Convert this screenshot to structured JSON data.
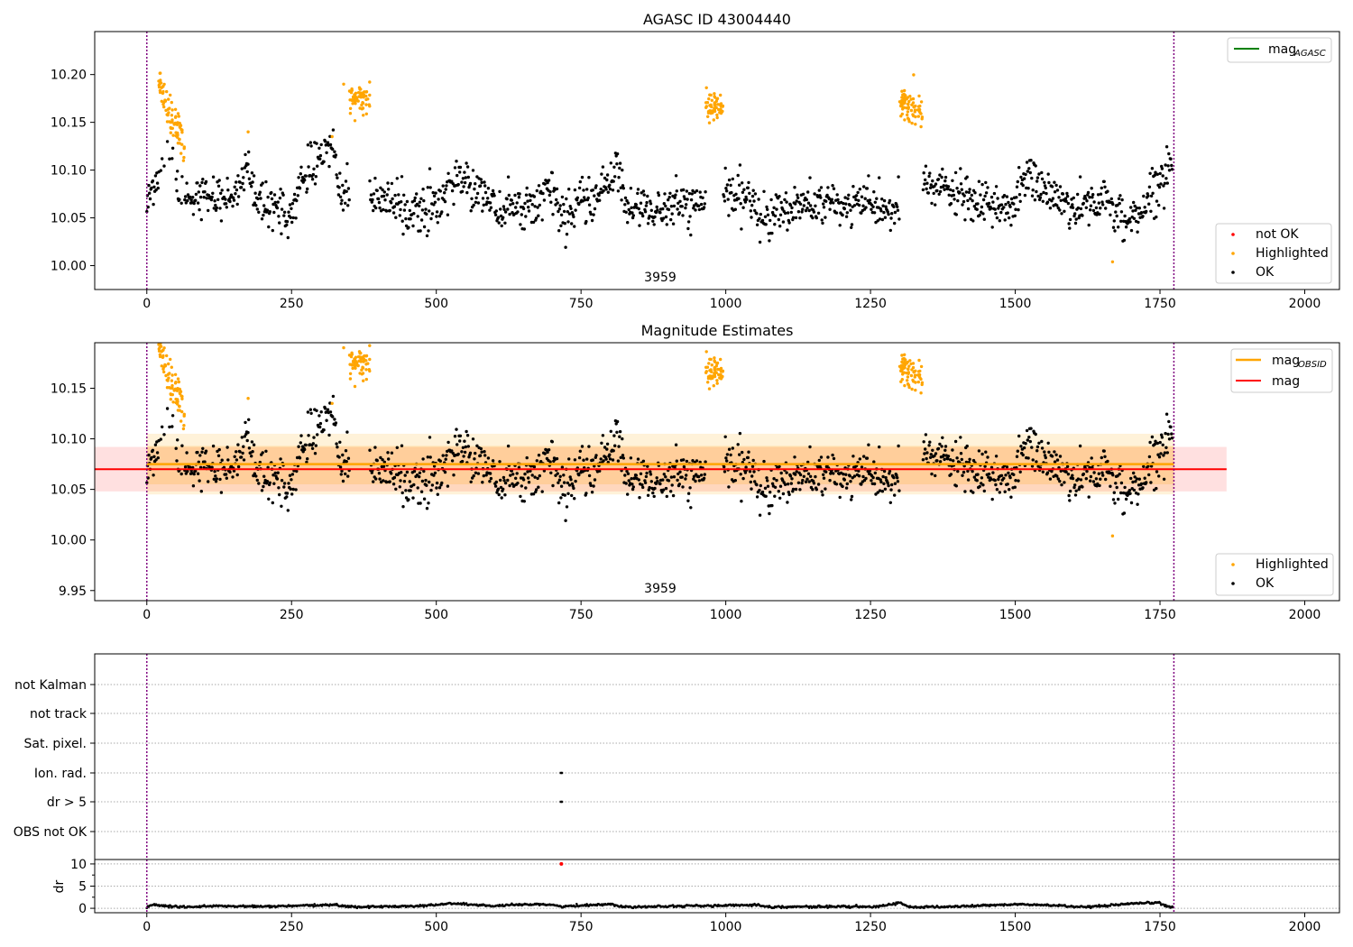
{
  "chart_data": [
    {
      "type": "scatter",
      "title": "AGASC ID 43004440",
      "xlim": [
        -90,
        2060
      ],
      "ylim": [
        9.975,
        10.245
      ],
      "x_ticks": [
        0,
        250,
        500,
        750,
        1000,
        1250,
        1500,
        1750,
        2000
      ],
      "y_ticks": [
        10.0,
        10.05,
        10.1,
        10.15,
        10.2
      ],
      "y_tick_labels": [
        "10.00",
        "10.05",
        "10.10",
        "10.15",
        "10.20"
      ],
      "vlines": [
        0,
        1774
      ],
      "annotation": "3959",
      "legend_top": {
        "position": "upper right",
        "entries": [
          {
            "label": "mag",
            "subscript": "AGASC",
            "color": "#008000"
          }
        ]
      },
      "legend_bottom": {
        "position": "lower right",
        "entries": [
          {
            "label": "not OK",
            "color": "#ff0000"
          },
          {
            "label": "Highlighted",
            "color": "#ffa500"
          },
          {
            "label": "OK",
            "color": "#000000"
          }
        ]
      },
      "series": [
        {
          "name": "OK",
          "color": "#000000",
          "trend": [
            [
              0,
              10.06
            ],
            [
              10,
              10.085
            ],
            [
              35,
              10.115
            ],
            [
              48,
              10.13
            ],
            [
              55,
              10.07
            ],
            [
              90,
              10.075
            ],
            [
              150,
              10.07
            ],
            [
              175,
              10.11
            ],
            [
              185,
              10.065
            ],
            [
              250,
              10.055
            ],
            [
              270,
              10.09
            ],
            [
              300,
              10.12
            ],
            [
              320,
              10.125
            ],
            [
              335,
              10.075
            ],
            [
              360,
              10.075
            ],
            [
              400,
              10.07
            ],
            [
              450,
              10.058
            ],
            [
              500,
              10.06
            ],
            [
              530,
              10.09
            ],
            [
              580,
              10.08
            ],
            [
              610,
              10.055
            ],
            [
              640,
              10.06
            ],
            [
              700,
              10.075
            ],
            [
              720,
              10.055
            ],
            [
              780,
              10.07
            ],
            [
              810,
              10.105
            ],
            [
              830,
              10.06
            ],
            [
              900,
              10.06
            ],
            [
              960,
              10.065
            ],
            [
              990,
              10.075
            ],
            [
              1040,
              10.07
            ],
            [
              1060,
              10.05
            ],
            [
              1100,
              10.06
            ],
            [
              1150,
              10.065
            ],
            [
              1200,
              10.062
            ],
            [
              1250,
              10.065
            ],
            [
              1290,
              10.055
            ],
            [
              1310,
              10.075
            ],
            [
              1350,
              10.085
            ],
            [
              1400,
              10.075
            ],
            [
              1450,
              10.06
            ],
            [
              1500,
              10.065
            ],
            [
              1520,
              10.095
            ],
            [
              1550,
              10.08
            ],
            [
              1600,
              10.06
            ],
            [
              1650,
              10.07
            ],
            [
              1690,
              10.045
            ],
            [
              1720,
              10.06
            ],
            [
              1760,
              10.1
            ],
            [
              1772,
              10.11
            ]
          ]
        },
        {
          "name": "Highlighted",
          "color": "#ffa500",
          "clusters": [
            {
              "from": 20,
              "to": 65,
              "center": 10.165,
              "spread": 0.022
            },
            {
              "from": 350,
              "to": 385,
              "center": 10.175,
              "spread": 0.012
            },
            {
              "from": 965,
              "to": 995,
              "center": 10.167,
              "spread": 0.014
            },
            {
              "from": 1300,
              "to": 1340,
              "center": 10.168,
              "spread": 0.015
            }
          ],
          "outliers": [
            [
              1668,
              10.004
            ],
            [
              175,
              10.14
            ],
            [
              320,
              10.135
            ],
            [
              340,
              10.19
            ]
          ]
        },
        {
          "name": "not OK",
          "color": "#ff0000",
          "points": []
        }
      ]
    },
    {
      "type": "scatter",
      "title": "Magnitude Estimates",
      "xlim": [
        -90,
        2060
      ],
      "ylim": [
        9.94,
        10.195
      ],
      "x_ticks": [
        0,
        250,
        500,
        750,
        1000,
        1250,
        1500,
        1750,
        2000
      ],
      "y_ticks": [
        9.95,
        10.0,
        10.05,
        10.1,
        10.15
      ],
      "y_tick_labels": [
        "9.95",
        "10.00",
        "10.05",
        "10.10",
        "10.15"
      ],
      "vlines": [
        0,
        1774
      ],
      "annotation": "3959",
      "mag_obsid": {
        "value": 10.075,
        "band": [
          10.045,
          10.105
        ],
        "inner_band": [
          10.055,
          10.093
        ],
        "x_range": [
          0,
          1774
        ],
        "color": "#ffa500"
      },
      "mag": {
        "value": 10.07,
        "band": [
          10.048,
          10.092
        ],
        "x_range": [
          -90,
          1865
        ],
        "color": "#ff0000"
      },
      "legend_top": {
        "position": "upper right",
        "entries": [
          {
            "label": "mag",
            "subscript": "OBSID",
            "color": "#ffa500"
          },
          {
            "label": "mag",
            "subscript": "",
            "color": "#ff0000"
          }
        ]
      },
      "legend_bottom": {
        "position": "lower right",
        "entries": [
          {
            "label": "Highlighted",
            "color": "#ffa500"
          },
          {
            "label": "OK",
            "color": "#000000"
          }
        ]
      }
    },
    {
      "type": "scatter",
      "title": "",
      "xlim": [
        -90,
        2060
      ],
      "x_ticks": [
        0,
        250,
        500,
        750,
        1000,
        1250,
        1500,
        1750,
        2000
      ],
      "vlines": [
        0,
        1774
      ],
      "flag_rows": [
        "not Kalman",
        "not track",
        "Sat. pixel.",
        "Ion. rad.",
        "dr > 5",
        "OBS not OK"
      ],
      "flag_points": [
        {
          "row": "Ion. rad.",
          "x": [
            715,
            717
          ]
        },
        {
          "row": "dr > 5",
          "x": [
            715,
            717
          ]
        }
      ],
      "dr_panel": {
        "ylabel": "dr",
        "ylim": [
          -1,
          11
        ],
        "y_ticks": [
          0,
          5,
          10
        ],
        "y_tick_labels": [
          "0",
          "5",
          "10"
        ],
        "minor_ticks": [
          2.5,
          7.5
        ],
        "outlier": {
          "x": 716,
          "y": 10,
          "color": "#ff0000"
        },
        "trend": [
          [
            0,
            0.2
          ],
          [
            10,
            0.8
          ],
          [
            50,
            0.3
          ],
          [
            120,
            0.5
          ],
          [
            200,
            0.4
          ],
          [
            280,
            0.6
          ],
          [
            320,
            0.8
          ],
          [
            360,
            0.3
          ],
          [
            420,
            0.4
          ],
          [
            480,
            0.6
          ],
          [
            530,
            1.1
          ],
          [
            600,
            0.5
          ],
          [
            680,
            1.0
          ],
          [
            720,
            0.4
          ],
          [
            800,
            1.0
          ],
          [
            820,
            0.3
          ],
          [
            900,
            0.5
          ],
          [
            1000,
            0.6
          ],
          [
            1050,
            0.8
          ],
          [
            1080,
            0.3
          ],
          [
            1200,
            0.4
          ],
          [
            1260,
            0.3
          ],
          [
            1300,
            1.3
          ],
          [
            1320,
            0.2
          ],
          [
            1400,
            0.4
          ],
          [
            1500,
            0.9
          ],
          [
            1580,
            0.6
          ],
          [
            1620,
            0.2
          ],
          [
            1700,
            1.0
          ],
          [
            1750,
            1.3
          ],
          [
            1760,
            0.5
          ],
          [
            1774,
            0.2
          ]
        ]
      }
    }
  ]
}
